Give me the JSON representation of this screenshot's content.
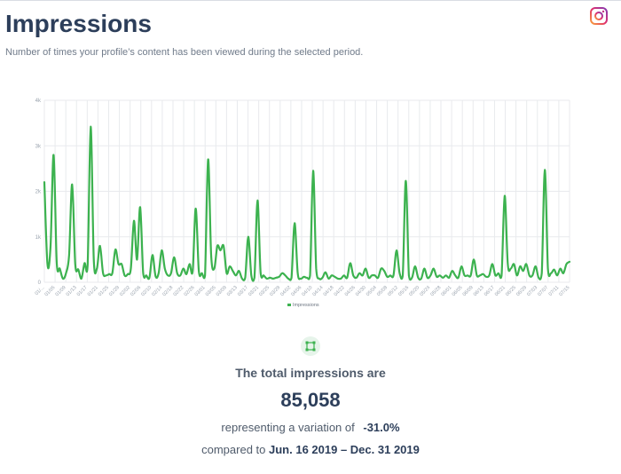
{
  "header": {
    "title": "Impressions",
    "subtitle": "Number of times your profile’s content has been viewed during the selected period."
  },
  "icons": {
    "instagram": "instagram-icon",
    "summary": "selection-frame-icon"
  },
  "colors": {
    "accent": "#3cb24f",
    "title": "#2c3e5a",
    "grid": "#e8eaed"
  },
  "chart_data": {
    "type": "line",
    "title": "",
    "xlabel": "",
    "ylabel": "",
    "ylim": [
      0,
      4000
    ],
    "yticks": [
      "0",
      "1k",
      "2k",
      "3k",
      "4k"
    ],
    "grid": true,
    "legend_position": "bottom",
    "x_ticks": [
      "01/...",
      "01/05",
      "01/09",
      "01/13",
      "01/17",
      "01/21",
      "01/25",
      "01/29",
      "02/02",
      "02/06",
      "02/10",
      "02/14",
      "02/18",
      "02/22",
      "02/26",
      "03/01",
      "03/05",
      "03/09",
      "03/13",
      "03/17",
      "03/21",
      "03/25",
      "03/29",
      "04/02",
      "04/06",
      "04/10",
      "04/14",
      "04/18",
      "04/22",
      "04/26",
      "04/30",
      "05/04",
      "05/08",
      "05/12",
      "05/16",
      "05/20",
      "05/24",
      "05/28",
      "06/01",
      "06/05",
      "06/09",
      "06/13",
      "06/17",
      "06/21",
      "06/25",
      "06/29",
      "07/03",
      "07/07",
      "07/11",
      "07/15"
    ],
    "series": [
      {
        "name": "Impressions",
        "color": "#3cb24f",
        "values": [
          2200,
          400,
          800,
          2800,
          450,
          300,
          80,
          200,
          600,
          2150,
          400,
          280,
          80,
          420,
          380,
          3420,
          500,
          300,
          800,
          200,
          150,
          180,
          200,
          720,
          400,
          400,
          150,
          180,
          300,
          1350,
          500,
          1650,
          200,
          150,
          100,
          600,
          130,
          200,
          700,
          300,
          150,
          200,
          550,
          200,
          150,
          300,
          180,
          400,
          250,
          1620,
          250,
          200,
          150,
          2700,
          600,
          300,
          800,
          700,
          800,
          200,
          350,
          250,
          150,
          250,
          80,
          100,
          1000,
          150,
          100,
          1800,
          200,
          150,
          80,
          100,
          80,
          100,
          120,
          200,
          150,
          80,
          100,
          1300,
          200,
          80,
          120,
          100,
          150,
          2450,
          300,
          80,
          100,
          220,
          80,
          150,
          120,
          80,
          80,
          150,
          100,
          420,
          150,
          100,
          200,
          150,
          300,
          100,
          150,
          150,
          100,
          300,
          250,
          120,
          150,
          150,
          700,
          200,
          150,
          2230,
          150,
          100,
          350,
          100,
          80,
          300,
          100,
          150,
          300,
          120,
          150,
          100,
          150,
          100,
          250,
          150,
          100,
          350,
          150,
          150,
          150,
          500,
          150,
          150,
          180,
          120,
          150,
          400,
          150,
          200,
          150,
          1900,
          400,
          300,
          400,
          150,
          350,
          250,
          400,
          150,
          150,
          350,
          100,
          200,
          2470,
          300,
          200,
          280,
          150,
          300,
          200,
          400,
          450
        ]
      }
    ]
  },
  "summary": {
    "label": "The total impressions are",
    "value": "85,058",
    "variation_prefix": "representing a variation of",
    "variation_value": "-31.0%",
    "compare_prefix": "compared to",
    "compare_period": "Jun. 16 2019 – Dec. 31 2019"
  }
}
